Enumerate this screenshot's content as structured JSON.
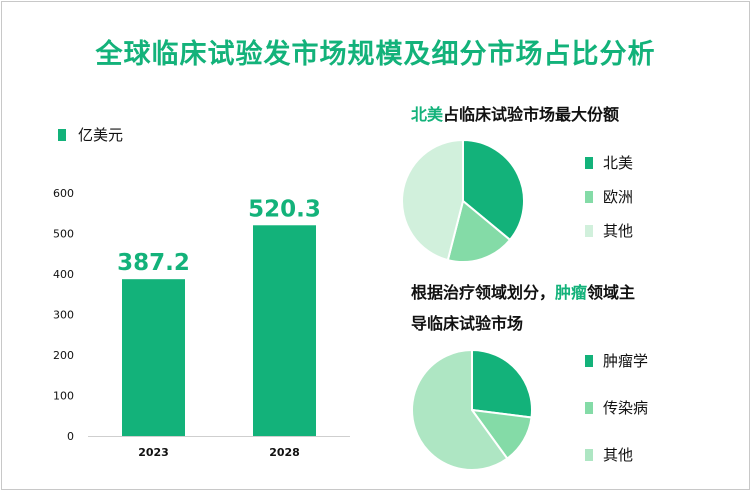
{
  "title": "全球临床试验发市场规模及细分市场占比分析",
  "chart_data": [
    {
      "type": "bar",
      "unit_legend": "亿美元",
      "categories": [
        "2023",
        "2028"
      ],
      "values": [
        387.2,
        520.3
      ],
      "value_labels": [
        "387.2",
        "520.3"
      ],
      "ylim": [
        0,
        600
      ],
      "yticks": [
        "0",
        "100",
        "200",
        "300",
        "400",
        "500",
        "600"
      ],
      "ytick_values": [
        0,
        100,
        200,
        300,
        400,
        500,
        600
      ],
      "color": "#13b27a",
      "label_color": "#13b27a"
    },
    {
      "type": "pie",
      "title_highlight": "北美",
      "title_rest": "占临床试验市场最大份额",
      "labels": [
        "北美",
        "欧洲",
        "其他"
      ],
      "values": [
        36,
        18,
        46
      ],
      "colors": [
        "#13b27a",
        "#84dba7",
        "#d1f0dc"
      ]
    },
    {
      "type": "pie",
      "title_line1_pre": "根据治疗领域划分，",
      "title_highlight": "肿瘤",
      "title_line1_post": "领域主",
      "title_line2": "导临床试验市场",
      "labels": [
        "肿瘤学",
        "传染病",
        "其他"
      ],
      "values": [
        27,
        13,
        60
      ],
      "colors": [
        "#13b27a",
        "#84dba7",
        "#aee6c3"
      ]
    }
  ]
}
